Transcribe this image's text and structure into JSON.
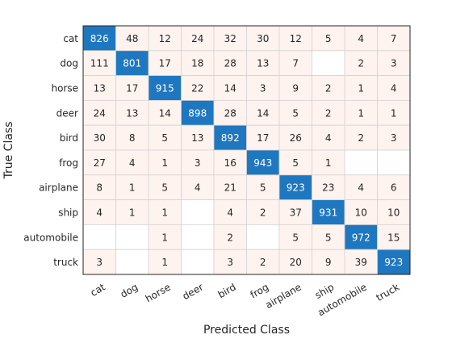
{
  "chart_data": {
    "type": "heatmap",
    "xlabel": "Predicted Class",
    "ylabel": "True Class",
    "rows": [
      "cat",
      "dog",
      "horse",
      "deer",
      "bird",
      "frog",
      "airplane",
      "ship",
      "automobile",
      "truck"
    ],
    "columns": [
      "cat",
      "dog",
      "horse",
      "deer",
      "bird",
      "frog",
      "airplane",
      "ship",
      "automobile",
      "truck"
    ],
    "values": [
      [
        826,
        48,
        12,
        24,
        32,
        30,
        12,
        5,
        4,
        7
      ],
      [
        111,
        801,
        17,
        18,
        28,
        13,
        7,
        null,
        2,
        3
      ],
      [
        13,
        17,
        915,
        22,
        14,
        3,
        9,
        2,
        1,
        4
      ],
      [
        24,
        13,
        14,
        898,
        28,
        14,
        5,
        2,
        1,
        1
      ],
      [
        30,
        8,
        5,
        13,
        892,
        17,
        26,
        4,
        2,
        3
      ],
      [
        27,
        4,
        1,
        3,
        16,
        943,
        5,
        1,
        null,
        null
      ],
      [
        8,
        1,
        5,
        4,
        21,
        5,
        923,
        23,
        4,
        6
      ],
      [
        4,
        1,
        1,
        null,
        4,
        2,
        37,
        931,
        10,
        10
      ],
      [
        null,
        null,
        1,
        null,
        2,
        null,
        5,
        5,
        972,
        15
      ],
      [
        3,
        null,
        1,
        null,
        3,
        2,
        20,
        9,
        39,
        923
      ]
    ],
    "colors": {
      "diagonal": "#1f77c0",
      "off_diagonal": "#fff3ef",
      "empty": "#ffffff",
      "grid": "#d3d3d3",
      "frame": "#262626",
      "diagonal_text": "#ffffff",
      "text": "#262626"
    }
  }
}
